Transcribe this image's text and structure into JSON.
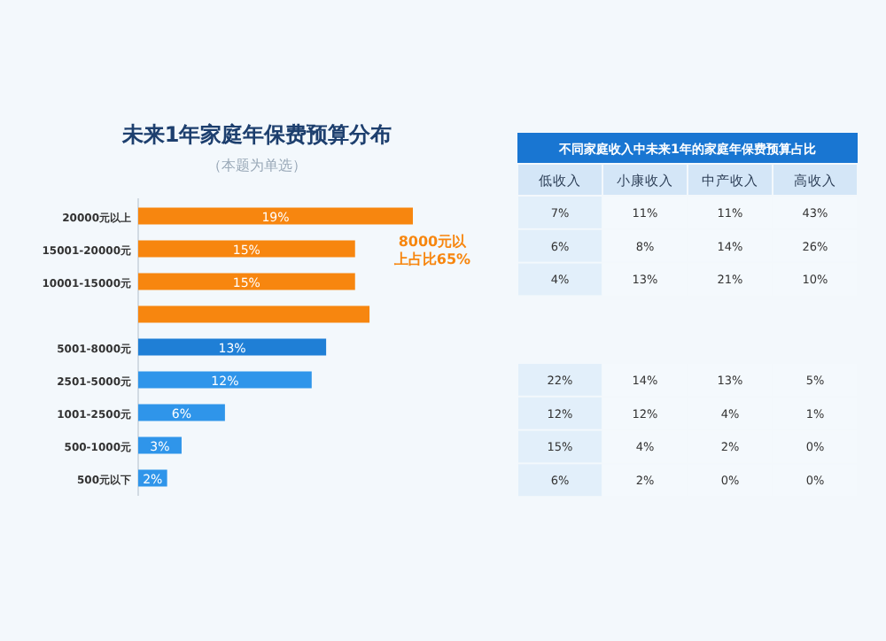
{
  "chart_data": [
    {
      "type": "bar",
      "orientation": "horizontal",
      "title": "未来1年家庭年保费预算分布",
      "subtitle": "（本题为单选）",
      "categories": [
        "20000元以上",
        "15001-20000元",
        "10001-15000元",
        null,
        "5001-8000元",
        "2501-5000元",
        "1001-2500元",
        "500-1000元",
        "500元以下"
      ],
      "values": [
        19,
        15,
        15,
        16,
        13,
        12,
        6,
        3,
        2
      ],
      "value_labels": [
        "19%",
        "15%",
        "15%",
        null,
        "13%",
        "12%",
        "6%",
        "3%",
        "2%"
      ],
      "colors": [
        "#f7860f",
        "#f7860f",
        "#f7860f",
        "#f7860f",
        "#1f7fd6",
        "#2f95ea",
        "#2f95ea",
        "#2f95ea",
        "#2f95ea"
      ],
      "annotations": [
        "8000元以上占比65%"
      ]
    },
    {
      "type": "other",
      "title": "不同家庭收入中未来1年的家庭年保费预算占比",
      "annotations": [
        "低收入",
        "小康收入",
        "中产收入",
        "高收入",
        "7%",
        "11%",
        "11%",
        "43%",
        "6%",
        "8%",
        "14%",
        "26%",
        "4%",
        "13%",
        "21%",
        "10%"
      ]
    },
    {
      "type": "other",
      "annotations": [
        "22%",
        "14%",
        "13%",
        "5%",
        "12%",
        "12%",
        "4%",
        "1%",
        "15%",
        "4%",
        "2%",
        "0%",
        "6%",
        "2%",
        "0%",
        "0%"
      ]
    }
  ]
}
